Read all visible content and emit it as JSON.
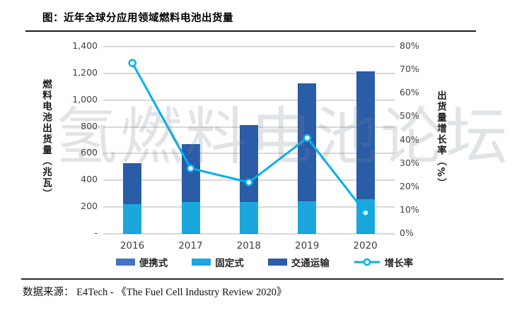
{
  "page": {
    "title": "图：近年全球分应用领域燃料电池出货量",
    "watermark": "氢燃料电池论坛",
    "source_text": "数据来源： E4Tech - 《The Fuel Cell Industry Review 2020》"
  },
  "chart_data": {
    "type": "bar",
    "subtype": "stacked-bar-with-line-combo",
    "title": "近年全球分应用领域燃料电池出货量",
    "categories": [
      "2016",
      "2017",
      "2018",
      "2019",
      "2020"
    ],
    "series": [
      {
        "name": "便携式",
        "type": "bar",
        "axis": "left",
        "color": "#4472C4",
        "values": [
          4,
          4,
          4,
          4,
          4
        ]
      },
      {
        "name": "固定式",
        "type": "bar",
        "axis": "left",
        "color": "#1BA7DD",
        "values": [
          220,
          235,
          235,
          240,
          255
        ]
      },
      {
        "name": "交通运输",
        "type": "bar",
        "axis": "left",
        "color": "#2A5CA8",
        "values": [
          306,
          431,
          576,
          881,
          956
        ]
      },
      {
        "name": "增长率",
        "type": "line",
        "axis": "right",
        "color": "#00B0F0",
        "values": [
          73,
          28,
          22,
          41,
          9
        ]
      }
    ],
    "stacked_totals_mw": [
      530,
      670,
      815,
      1125,
      1215
    ],
    "left_axis": {
      "label": "燃料电池出货量（兆瓦）",
      "ticks": [
        "1,400",
        "1,200",
        "1,000",
        "800",
        "600",
        "400",
        "200",
        "-"
      ],
      "min": 0,
      "max": 1400,
      "step": 200
    },
    "right_axis": {
      "label": "出货量增长率（%）",
      "ticks": [
        "80%",
        "70%",
        "60%",
        "50%",
        "40%",
        "30%",
        "20%",
        "10%",
        "0%"
      ],
      "min": 0,
      "max": 80,
      "step": 10
    },
    "grid": "horizontal, every 200 MW, light gray",
    "legend_position": "bottom",
    "colors": {
      "gridline": "#d8d8d8",
      "line_marker_fill": "#ffffff",
      "watermark_tint": "#e6e9eb"
    }
  }
}
